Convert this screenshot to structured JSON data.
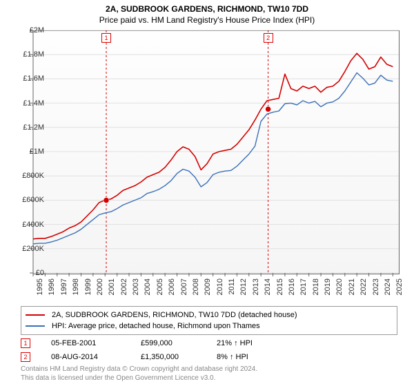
{
  "title": "2A, SUDBROOK GARDENS, RICHMOND, TW10 7DD",
  "subtitle": "Price paid vs. HM Land Registry's House Price Index (HPI)",
  "chart": {
    "type": "line",
    "background_gradient_top": "#fefefe",
    "background_gradient_bottom": "#f5f5f5",
    "axis_color": "#666666",
    "grid_color": "#e0e0e0",
    "xlim": [
      1995,
      2025.5
    ],
    "ylim": [
      0,
      2000000
    ],
    "yticks": [
      0,
      200000,
      400000,
      600000,
      800000,
      1000000,
      1200000,
      1400000,
      1600000,
      1800000,
      2000000
    ],
    "ytick_labels": [
      "£0",
      "£200K",
      "£400K",
      "£600K",
      "£800K",
      "£1M",
      "£1.2M",
      "£1.4M",
      "£1.6M",
      "£1.8M",
      "£2M"
    ],
    "xticks": [
      1995,
      1996,
      1997,
      1998,
      1999,
      2000,
      2001,
      2002,
      2003,
      2004,
      2005,
      2006,
      2007,
      2008,
      2009,
      2010,
      2011,
      2012,
      2013,
      2014,
      2015,
      2016,
      2017,
      2018,
      2019,
      2020,
      2021,
      2022,
      2023,
      2024,
      2025
    ],
    "xtick_labels": [
      "1995",
      "1996",
      "1997",
      "1998",
      "1999",
      "2000",
      "2001",
      "2002",
      "2003",
      "2004",
      "2005",
      "2006",
      "2007",
      "2008",
      "2009",
      "2010",
      "2011",
      "2012",
      "2013",
      "2014",
      "2015",
      "2016",
      "2017",
      "2018",
      "2019",
      "2020",
      "2021",
      "2022",
      "2023",
      "2024",
      "2025"
    ],
    "series": [
      {
        "name": "2A, SUDBROOK GARDENS, RICHMOND, TW10 7DD (detached house)",
        "color": "#d40000",
        "line_width": 1.6,
        "x": [
          1995,
          1995.5,
          1996,
          1996.5,
          1997,
          1997.5,
          1998,
          1998.5,
          1999,
          1999.5,
          2000,
          2000.5,
          2001,
          2001.5,
          2002,
          2002.5,
          2003,
          2003.5,
          2004,
          2004.5,
          2005,
          2005.5,
          2006,
          2006.5,
          2007,
          2007.5,
          2008,
          2008.5,
          2009,
          2009.5,
          2010,
          2010.5,
          2011,
          2011.5,
          2012,
          2012.5,
          2013,
          2013.5,
          2014,
          2014.5,
          2015,
          2015.5,
          2016,
          2016.5,
          2017,
          2017.5,
          2018,
          2018.5,
          2019,
          2019.5,
          2020,
          2020.5,
          2021,
          2021.5,
          2022,
          2022.5,
          2023,
          2023.5,
          2024,
          2024.5,
          2025
        ],
        "y": [
          280000,
          285000,
          285000,
          300000,
          320000,
          340000,
          370000,
          390000,
          420000,
          470000,
          520000,
          580000,
          600000,
          610000,
          640000,
          680000,
          700000,
          720000,
          750000,
          790000,
          810000,
          830000,
          870000,
          930000,
          1000000,
          1040000,
          1020000,
          960000,
          850000,
          900000,
          980000,
          1000000,
          1010000,
          1020000,
          1060000,
          1120000,
          1180000,
          1260000,
          1350000,
          1420000,
          1430000,
          1440000,
          1640000,
          1520000,
          1500000,
          1540000,
          1520000,
          1540000,
          1490000,
          1530000,
          1540000,
          1580000,
          1660000,
          1750000,
          1810000,
          1760000,
          1680000,
          1700000,
          1780000,
          1720000,
          1700000
        ]
      },
      {
        "name": "HPI: Average price, detached house, Richmond upon Thames",
        "color": "#3a6fb7",
        "line_width": 1.4,
        "x": [
          1995,
          1995.5,
          1996,
          1996.5,
          1997,
          1997.5,
          1998,
          1998.5,
          1999,
          1999.5,
          2000,
          2000.5,
          2001,
          2001.5,
          2002,
          2002.5,
          2003,
          2003.5,
          2004,
          2004.5,
          2005,
          2005.5,
          2006,
          2006.5,
          2007,
          2007.5,
          2008,
          2008.5,
          2009,
          2009.5,
          2010,
          2010.5,
          2011,
          2011.5,
          2012,
          2012.5,
          2013,
          2013.5,
          2014,
          2014.5,
          2015,
          2015.5,
          2016,
          2016.5,
          2017,
          2017.5,
          2018,
          2018.5,
          2019,
          2019.5,
          2020,
          2020.5,
          2021,
          2021.5,
          2022,
          2022.5,
          2023,
          2023.5,
          2024,
          2024.5,
          2025
        ],
        "y": [
          240000,
          245000,
          245000,
          255000,
          270000,
          290000,
          310000,
          330000,
          360000,
          400000,
          440000,
          480000,
          495000,
          505000,
          530000,
          560000,
          580000,
          600000,
          620000,
          655000,
          670000,
          690000,
          720000,
          760000,
          820000,
          855000,
          840000,
          790000,
          710000,
          745000,
          810000,
          830000,
          840000,
          845000,
          880000,
          930000,
          980000,
          1045000,
          1250000,
          1310000,
          1325000,
          1335000,
          1395000,
          1400000,
          1385000,
          1420000,
          1400000,
          1415000,
          1370000,
          1400000,
          1410000,
          1440000,
          1500000,
          1575000,
          1650000,
          1605000,
          1550000,
          1565000,
          1630000,
          1590000,
          1580000
        ]
      }
    ],
    "event_lines": [
      {
        "x": 2001.1,
        "color": "#d40000",
        "dash": "3,3"
      },
      {
        "x": 2014.6,
        "color": "#d40000",
        "dash": "3,3"
      }
    ],
    "sale_points": [
      {
        "id": "1",
        "x": 2001.1,
        "y": 599000,
        "marker_color": "#d40000"
      },
      {
        "id": "2",
        "x": 2014.6,
        "y": 1350000,
        "marker_color": "#d40000"
      }
    ]
  },
  "legend": {
    "border_color": "#999999",
    "items": [
      {
        "color": "#d40000",
        "label": "2A, SUDBROOK GARDENS, RICHMOND, TW10 7DD (detached house)"
      },
      {
        "color": "#3a6fb7",
        "label": "HPI: Average price, detached house, Richmond upon Thames"
      }
    ]
  },
  "sales": [
    {
      "id": "1",
      "date": "05-FEB-2001",
      "price": "£599,000",
      "diff": "21% ↑ HPI"
    },
    {
      "id": "2",
      "date": "08-AUG-2014",
      "price": "£1,350,000",
      "diff": "8% ↑ HPI"
    }
  ],
  "footer": {
    "line1": "Contains HM Land Registry data © Crown copyright and database right 2024.",
    "line2": "This data is licensed under the Open Government Licence v3.0."
  },
  "colors": {
    "marker_border": "#d40000",
    "footer_text": "#888888"
  }
}
